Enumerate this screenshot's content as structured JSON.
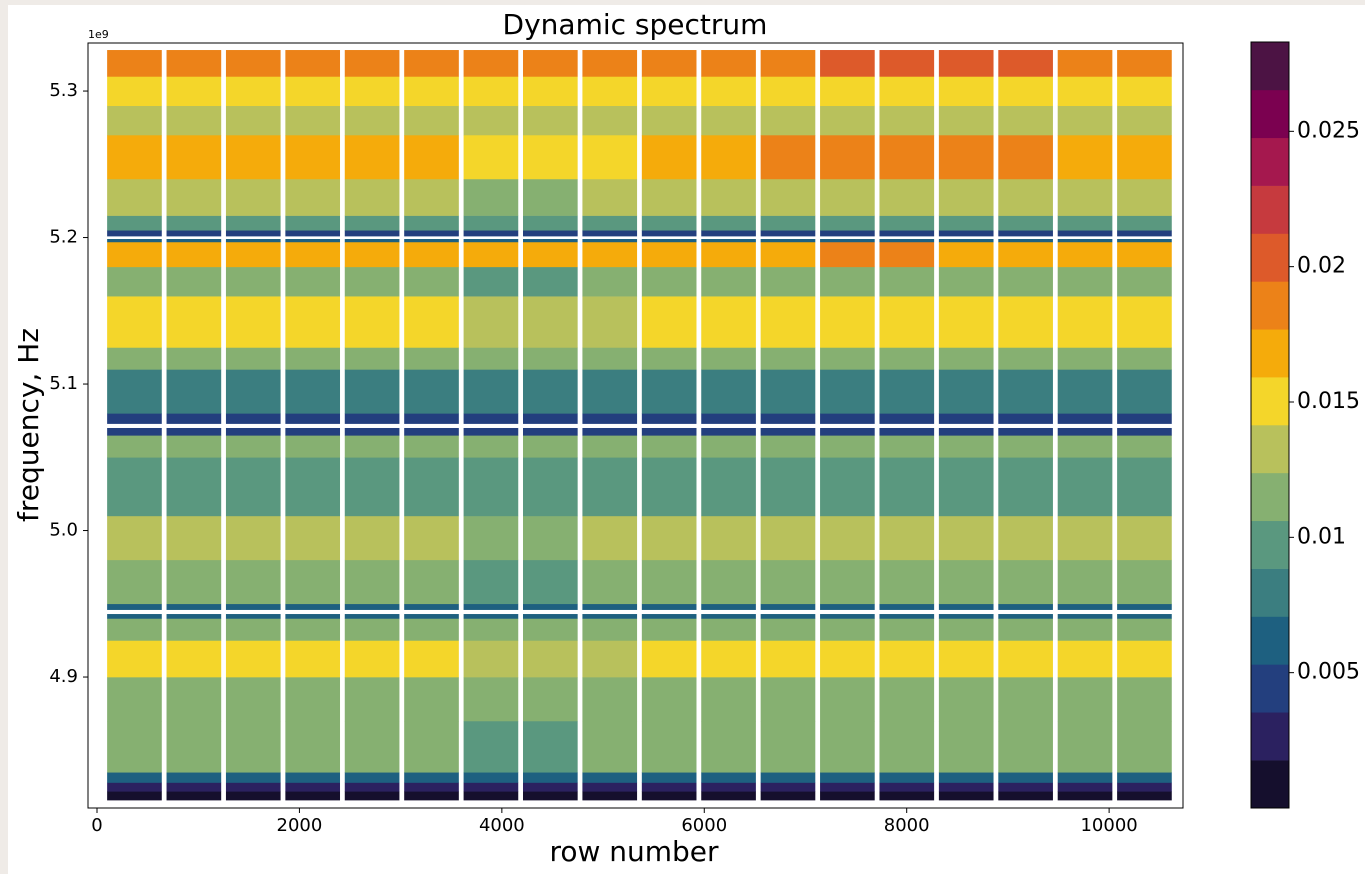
{
  "chart_data": {
    "type": "heatmap",
    "title": "Dynamic spectrum",
    "x_label": "row number",
    "y_label": "frequency, Hz",
    "y_offset_label": "1e9",
    "xlim": [
      -89,
      10730
    ],
    "xticks": [
      0,
      2000,
      4000,
      6000,
      8000,
      10000
    ],
    "ylim": [
      4810600000,
      5332800000
    ],
    "yticks": [
      {
        "value": 4900000000,
        "label": "4.9"
      },
      {
        "value": 5000000000,
        "label": "5.0"
      },
      {
        "value": 5100000000,
        "label": "5.1"
      },
      {
        "value": 5200000000,
        "label": "5.2"
      },
      {
        "value": 5300000000,
        "label": "5.3"
      }
    ],
    "blocks": [
      [
        100,
        640
      ],
      [
        687,
        1227
      ],
      [
        1274,
        1814
      ],
      [
        1861,
        2401
      ],
      [
        2448,
        2988
      ],
      [
        3035,
        3575
      ],
      [
        3622,
        4162
      ],
      [
        4209,
        4749
      ],
      [
        4796,
        5336
      ],
      [
        5383,
        5923
      ],
      [
        5970,
        6510
      ],
      [
        6557,
        7097
      ],
      [
        7144,
        7684
      ],
      [
        7731,
        8271
      ],
      [
        8318,
        8858
      ],
      [
        8905,
        9445
      ],
      [
        9492,
        10032
      ],
      [
        10079,
        10619
      ]
    ],
    "y_edges": [
      4816000000,
      4822000000,
      4828000000,
      4835000000,
      4870000000,
      4900000000,
      4925000000,
      4940000000,
      4943000000,
      4946000000,
      4950000000,
      4980000000,
      5010000000,
      5050000000,
      5065000000,
      5070000000,
      5073000000,
      5080000000,
      5110000000,
      5125000000,
      5160000000,
      5180000000,
      5197000000,
      5199000000,
      5201000000,
      5205000000,
      5215000000,
      5240000000,
      5270000000,
      5290000000,
      5310000000,
      5328000000
    ],
    "values": [
      [
        0.0005,
        0.0005,
        0.0005,
        0.0005,
        0.0005,
        0.0005,
        0.0005,
        0.0005,
        0.0005,
        0.0005,
        0.0005,
        0.0005,
        0.0005,
        0.0005,
        0.0005,
        0.0005,
        0.0005,
        0.0005
      ],
      [
        0.003,
        0.003,
        0.003,
        0.003,
        0.003,
        0.003,
        0.003,
        0.003,
        0.003,
        0.003,
        0.003,
        0.003,
        0.003,
        0.003,
        0.003,
        0.003,
        0.003,
        0.003
      ],
      [
        0.007,
        0.007,
        0.007,
        0.007,
        0.007,
        0.007,
        0.007,
        0.007,
        0.007,
        0.007,
        0.007,
        0.007,
        0.007,
        0.007,
        0.007,
        0.007,
        0.007,
        0.007
      ],
      [
        0.0115,
        0.0115,
        0.0115,
        0.0115,
        0.0115,
        0.0115,
        0.0105,
        0.0105,
        0.0115,
        0.0115,
        0.0115,
        0.0115,
        0.0115,
        0.0115,
        0.0115,
        0.0115,
        0.0115,
        0.0115
      ],
      [
        0.012,
        0.012,
        0.012,
        0.012,
        0.012,
        0.012,
        0.011,
        0.012,
        0.012,
        0.012,
        0.012,
        0.012,
        0.012,
        0.012,
        0.012,
        0.012,
        0.012,
        0.012
      ],
      [
        0.0145,
        0.0145,
        0.0145,
        0.0145,
        0.0145,
        0.0145,
        0.0135,
        0.0135,
        0.0135,
        0.0145,
        0.0155,
        0.0155,
        0.0155,
        0.0145,
        0.0145,
        0.0145,
        0.0145,
        0.0145
      ],
      [
        0.011,
        0.011,
        0.011,
        0.011,
        0.011,
        0.011,
        0.011,
        0.011,
        0.011,
        0.011,
        0.011,
        0.011,
        0.011,
        0.011,
        0.011,
        0.011,
        0.011,
        0.011
      ],
      [
        0.006,
        0.006,
        0.006,
        0.006,
        0.006,
        0.006,
        0.006,
        0.006,
        0.006,
        0.006,
        0.006,
        0.006,
        0.006,
        0.006,
        0.006,
        0.006,
        0.006,
        0.006
      ],
      [
        null,
        null,
        null,
        null,
        null,
        null,
        null,
        null,
        null,
        null,
        null,
        null,
        null,
        null,
        null,
        null,
        null,
        null
      ],
      [
        0.006,
        0.006,
        0.006,
        0.006,
        0.006,
        0.006,
        0.006,
        0.006,
        0.006,
        0.006,
        0.006,
        0.006,
        0.006,
        0.006,
        0.006,
        0.006,
        0.006,
        0.006
      ],
      [
        0.0115,
        0.0115,
        0.0115,
        0.0115,
        0.0115,
        0.0115,
        0.0105,
        0.0105,
        0.0115,
        0.0115,
        0.0115,
        0.0115,
        0.0115,
        0.0115,
        0.0115,
        0.0115,
        0.0115,
        0.0115
      ],
      [
        0.0125,
        0.0125,
        0.0125,
        0.0125,
        0.0125,
        0.0125,
        0.0115,
        0.0115,
        0.0125,
        0.0125,
        0.0125,
        0.0125,
        0.0125,
        0.0125,
        0.0125,
        0.0125,
        0.0125,
        0.0125
      ],
      [
        0.01,
        0.01,
        0.01,
        0.01,
        0.01,
        0.01,
        0.009,
        0.009,
        0.01,
        0.01,
        0.01,
        0.01,
        0.01,
        0.01,
        0.01,
        0.01,
        0.01,
        0.01
      ],
      [
        0.011,
        0.011,
        0.011,
        0.011,
        0.011,
        0.011,
        0.011,
        0.011,
        0.011,
        0.011,
        0.011,
        0.011,
        0.011,
        0.011,
        0.011,
        0.011,
        0.011,
        0.011
      ],
      [
        0.005,
        0.005,
        0.005,
        0.005,
        0.005,
        0.005,
        0.005,
        0.005,
        0.005,
        0.005,
        0.005,
        0.005,
        0.005,
        0.005,
        0.005,
        0.005,
        0.005,
        0.005
      ],
      [
        null,
        null,
        null,
        null,
        null,
        null,
        null,
        null,
        null,
        null,
        null,
        null,
        null,
        null,
        null,
        null,
        null,
        null
      ],
      [
        0.004,
        0.004,
        0.004,
        0.004,
        0.004,
        0.004,
        0.004,
        0.004,
        0.004,
        0.004,
        0.004,
        0.004,
        0.004,
        0.004,
        0.004,
        0.004,
        0.004,
        0.004
      ],
      [
        0.0085,
        0.0085,
        0.0085,
        0.0085,
        0.0085,
        0.0085,
        0.0075,
        0.0075,
        0.0085,
        0.0085,
        0.0085,
        0.0085,
        0.0085,
        0.0085,
        0.0085,
        0.0085,
        0.0085,
        0.0085
      ],
      [
        0.011,
        0.011,
        0.011,
        0.011,
        0.011,
        0.011,
        0.011,
        0.011,
        0.011,
        0.011,
        0.011,
        0.011,
        0.011,
        0.011,
        0.011,
        0.011,
        0.011,
        0.011
      ],
      [
        0.0145,
        0.0145,
        0.0145,
        0.0145,
        0.0145,
        0.0145,
        0.0135,
        0.0135,
        0.0135,
        0.0145,
        0.0145,
        0.0155,
        0.0155,
        0.0155,
        0.0155,
        0.0145,
        0.0145,
        0.0145
      ],
      [
        0.012,
        0.012,
        0.012,
        0.012,
        0.012,
        0.012,
        0.0105,
        0.0105,
        0.012,
        0.012,
        0.012,
        0.012,
        0.012,
        0.012,
        0.012,
        0.012,
        0.012,
        0.012
      ],
      [
        0.016,
        0.016,
        0.016,
        0.016,
        0.016,
        0.016,
        0.016,
        0.016,
        0.016,
        0.016,
        0.016,
        0.016,
        0.018,
        0.018,
        0.016,
        0.016,
        0.016,
        0.016
      ],
      [
        0.007,
        0.007,
        0.007,
        0.007,
        0.007,
        0.007,
        0.007,
        0.007,
        0.007,
        0.007,
        0.007,
        0.007,
        0.007,
        0.007,
        0.007,
        0.007,
        0.007,
        0.007
      ],
      [
        null,
        null,
        null,
        null,
        null,
        null,
        null,
        null,
        null,
        null,
        null,
        null,
        null,
        null,
        null,
        null,
        null,
        null
      ],
      [
        0.005,
        0.005,
        0.005,
        0.005,
        0.005,
        0.005,
        0.005,
        0.005,
        0.005,
        0.005,
        0.005,
        0.005,
        0.005,
        0.005,
        0.005,
        0.005,
        0.005,
        0.005
      ],
      [
        0.009,
        0.009,
        0.009,
        0.009,
        0.009,
        0.009,
        0.009,
        0.009,
        0.009,
        0.009,
        0.009,
        0.009,
        0.009,
        0.009,
        0.009,
        0.009,
        0.009,
        0.009
      ],
      [
        0.0125,
        0.0125,
        0.0125,
        0.0125,
        0.0125,
        0.0125,
        0.0115,
        0.0115,
        0.0125,
        0.0125,
        0.0125,
        0.0125,
        0.0125,
        0.0125,
        0.0125,
        0.0125,
        0.0125,
        0.0125
      ],
      [
        0.0175,
        0.0175,
        0.0175,
        0.0175,
        0.0175,
        0.0175,
        0.0155,
        0.0155,
        0.0155,
        0.0175,
        0.0175,
        0.019,
        0.019,
        0.019,
        0.019,
        0.019,
        0.0175,
        0.0175
      ],
      [
        0.014,
        0.014,
        0.014,
        0.014,
        0.014,
        0.014,
        0.013,
        0.013,
        0.014,
        0.014,
        0.014,
        0.014,
        0.014,
        0.014,
        0.014,
        0.014,
        0.014,
        0.014
      ],
      [
        0.0155,
        0.0155,
        0.0155,
        0.0155,
        0.0155,
        0.0155,
        0.0145,
        0.0145,
        0.0155,
        0.0155,
        0.0155,
        0.0155,
        0.0155,
        0.0155,
        0.0155,
        0.0155,
        0.0155,
        0.0155
      ],
      [
        0.018,
        0.018,
        0.018,
        0.018,
        0.018,
        0.018,
        0.018,
        0.018,
        0.018,
        0.018,
        0.018,
        0.018,
        0.0195,
        0.0195,
        0.0195,
        0.0195,
        0.018,
        0.018
      ]
    ],
    "clim": [
      0,
      0.0283
    ],
    "colors": [
      "#150f2d",
      "#2b2160",
      "#233f7e",
      "#1e6080",
      "#3b7e80",
      "#5a987f",
      "#86b071",
      "#b8c15c",
      "#f4d62a",
      "#f5ab0b",
      "#ec8218",
      "#dd5a2a",
      "#c63a3e",
      "#a5184e",
      "#7b0150",
      "#4c1344"
    ],
    "cticks": [
      0.005,
      0.01,
      0.015,
      0.02,
      0.025
    ]
  }
}
